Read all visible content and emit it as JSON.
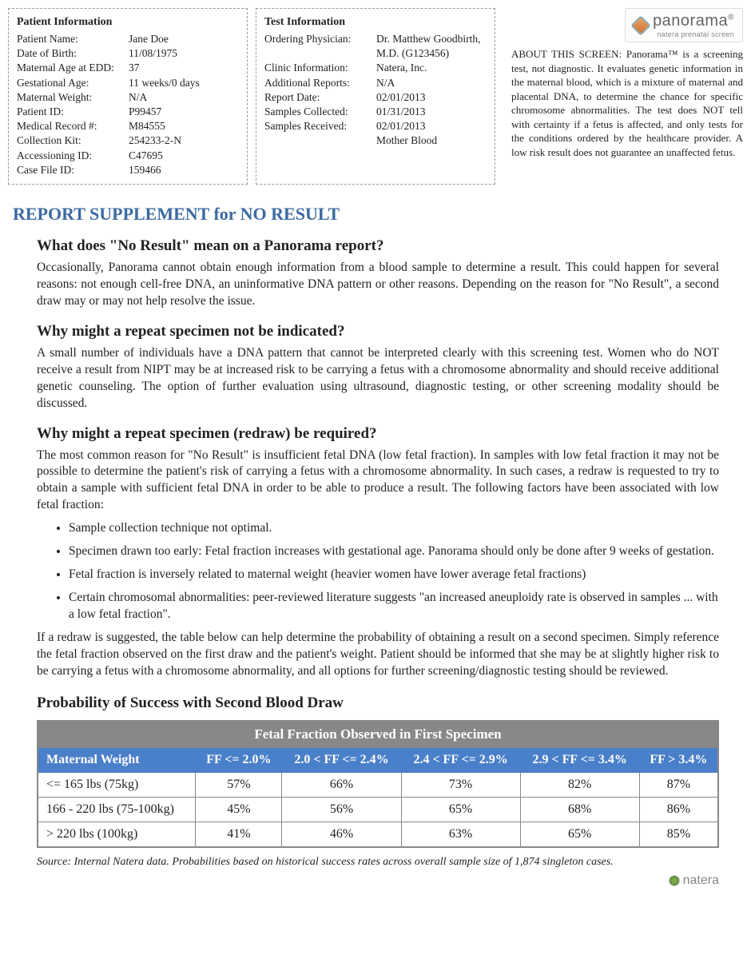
{
  "patient": {
    "heading": "Patient Information",
    "rows": [
      {
        "k": "Patient Name:",
        "v": "Jane Doe"
      },
      {
        "k": "Date of Birth:",
        "v": "11/08/1975"
      },
      {
        "k": "Maternal Age at EDD:",
        "v": "37"
      },
      {
        "k": "Gestational Age:",
        "v": "11 weeks/0 days"
      },
      {
        "k": "Maternal Weight:",
        "v": "N/A"
      },
      {
        "k": "Patient ID:",
        "v": "P99457"
      },
      {
        "k": "Medical Record #:",
        "v": "M84555"
      },
      {
        "k": "Collection Kit:",
        "v": "254233-2-N"
      },
      {
        "k": "Accessioning ID:",
        "v": "C47695"
      },
      {
        "k": "Case File ID:",
        "v": "159466"
      }
    ]
  },
  "test": {
    "heading": "Test Information",
    "rows": [
      {
        "k": "Ordering Physician:",
        "v": "Dr. Matthew Goodbirth, M.D. (G123456)"
      },
      {
        "k": "Clinic Information:",
        "v": "Natera, Inc."
      },
      {
        "k": "Additional Reports:",
        "v": "N/A"
      },
      {
        "k": "Report Date:",
        "v": "02/01/2013"
      },
      {
        "k": "Samples Collected:",
        "v": "01/31/2013"
      },
      {
        "k": "Samples Received:",
        "v": "02/01/2013"
      },
      {
        "k": "",
        "v": "Mother Blood"
      }
    ]
  },
  "logo": {
    "main": "panorama",
    "sub": "natera prenatal screen",
    "reg": "®"
  },
  "about": "ABOUT THIS SCREEN: Panorama™ is a screening test, not diagnostic. It evaluates genetic information in the maternal blood, which is a mixture of maternal and placental DNA, to determine the chance for specific chromosome abnormalities. The test does NOT tell with certainty if a fetus is affected, and only tests for the conditions ordered by the healthcare provider. A low risk result does not guarantee an unaffected fetus.",
  "section_title": "REPORT SUPPLEMENT for NO RESULT",
  "qa": [
    {
      "q": "What does \"No Result\" mean on a Panorama report?",
      "p": [
        "Occasionally, Panorama cannot obtain enough information from a blood sample to determine a result. This could happen for several reasons: not enough cell-free DNA, an uninformative DNA pattern or other reasons. Depending on the reason for \"No Result\", a second draw may or may not help resolve the issue."
      ]
    },
    {
      "q": "Why might a repeat specimen not be indicated?",
      "p": [
        "A small number of individuals have a DNA pattern that cannot be interpreted clearly with this screening test. Women who do NOT receive a result from NIPT may be at increased risk to be carrying a fetus with a chromosome abnormality and should receive additional genetic counseling. The option of further evaluation using ultrasound, diagnostic testing, or other screening modality should be discussed."
      ]
    },
    {
      "q": "Why might a repeat specimen (redraw) be required?",
      "p": [
        "The most common reason for \"No Result\" is insufficient fetal DNA (low fetal fraction). In samples with low fetal fraction it may not be possible to determine the patient's risk of carrying a fetus with a chromosome abnormality. In such cases, a redraw is requested to try to obtain a sample with sufficient fetal DNA in order to be able to produce a result. The following factors have been associated with low fetal fraction:"
      ],
      "bullets": [
        "Sample collection technique not optimal.",
        "Specimen drawn too early: Fetal fraction increases with gestational age. Panorama should only be done after 9 weeks of gestation.",
        "Fetal fraction is inversely related to maternal weight (heavier women have lower average fetal fractions)",
        "Certain chromosomal abnormalities: peer-reviewed literature suggests \"an increased aneuploidy rate is observed in samples ... with a low fetal fraction\"."
      ],
      "p2": [
        "If a redraw is suggested, the table below can help determine the probability of obtaining a result on a second specimen. Simply reference the fetal fraction observed on the first draw and the patient's weight. Patient should be informed that she may be at slightly higher risk to be carrying a fetus with a chromosome abnormality, and all options for further screening/diagnostic testing should be reviewed."
      ]
    }
  ],
  "table": {
    "title": "Probability of Success with Second Blood Draw",
    "top_header": "Fetal Fraction Observed in First Specimen",
    "col_labels": [
      "Maternal Weight",
      "FF <= 2.0%",
      "2.0 < FF <= 2.4%",
      "2.4 < FF <= 2.9%",
      "2.9 < FF <= 3.4%",
      "FF > 3.4%"
    ],
    "rows": [
      {
        "label": "<= 165 lbs (75kg)",
        "vals": [
          "57%",
          "66%",
          "73%",
          "82%",
          "87%"
        ]
      },
      {
        "label": "166 - 220 lbs (75-100kg)",
        "vals": [
          "45%",
          "56%",
          "65%",
          "68%",
          "86%"
        ]
      },
      {
        "label": "> 220 lbs (100kg)",
        "vals": [
          "41%",
          "46%",
          "63%",
          "65%",
          "85%"
        ]
      }
    ],
    "footnote": "Source: Internal Natera data. Probabilities based on historical success rates across overall sample size of 1,874 singleton cases.",
    "colors": {
      "header_bg": "#888888",
      "subheader_bg": "#4a7fc9",
      "border": "#888888",
      "text": "#ffffff"
    }
  },
  "footer_logo": "natera"
}
